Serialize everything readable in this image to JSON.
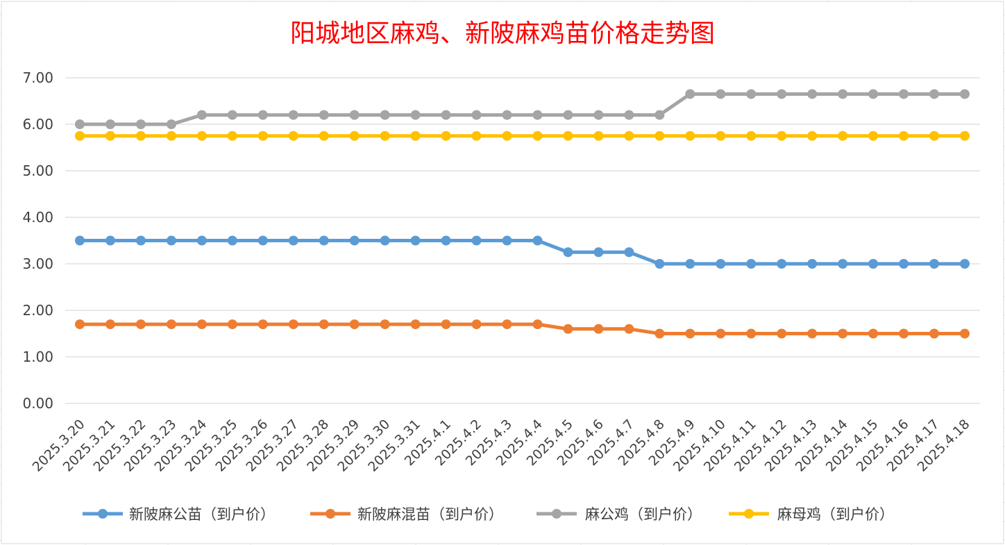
{
  "chart_data": {
    "type": "line",
    "title": "阳城地区麻鸡、新陂麻鸡苗价格走势图",
    "xlabel": "",
    "ylabel": "",
    "ylim": [
      0,
      7
    ],
    "y_ticks": [
      "0.00",
      "1.00",
      "2.00",
      "3.00",
      "4.00",
      "5.00",
      "6.00",
      "7.00"
    ],
    "grid": true,
    "legend_position": "bottom",
    "categories": [
      "2025.3.20",
      "2025.3.21",
      "2025.3.22",
      "2025.3.23",
      "2025.3.24",
      "2025.3.25",
      "2025.3.26",
      "2025.3.27",
      "2025.3.28",
      "2025.3.29",
      "2025.3.30",
      "2025.3.31",
      "2025.4.1",
      "2025.4.2",
      "2025.4.3",
      "2025.4.4",
      "2025.4.5",
      "2025.4.6",
      "2025.4.7",
      "2025.4.8",
      "2025.4.9",
      "2025.4.10",
      "2025.4.11",
      "2025.4.12",
      "2025.4.13",
      "2025.4.14",
      "2025.4.15",
      "2025.4.16",
      "2025.4.17",
      "2025.4.18"
    ],
    "series": [
      {
        "name": "新陂麻公苗（到户价）",
        "color": "#5b9bd5",
        "values": [
          3.5,
          3.5,
          3.5,
          3.5,
          3.5,
          3.5,
          3.5,
          3.5,
          3.5,
          3.5,
          3.5,
          3.5,
          3.5,
          3.5,
          3.5,
          3.5,
          3.25,
          3.25,
          3.25,
          3.0,
          3.0,
          3.0,
          3.0,
          3.0,
          3.0,
          3.0,
          3.0,
          3.0,
          3.0,
          3.0
        ]
      },
      {
        "name": "新陂麻混苗（到户价）",
        "color": "#ed7d31",
        "values": [
          1.7,
          1.7,
          1.7,
          1.7,
          1.7,
          1.7,
          1.7,
          1.7,
          1.7,
          1.7,
          1.7,
          1.7,
          1.7,
          1.7,
          1.7,
          1.7,
          1.6,
          1.6,
          1.6,
          1.5,
          1.5,
          1.5,
          1.5,
          1.5,
          1.5,
          1.5,
          1.5,
          1.5,
          1.5,
          1.5
        ]
      },
      {
        "name": "麻公鸡（到户价）",
        "color": "#a5a5a5",
        "values": [
          6.0,
          6.0,
          6.0,
          6.0,
          6.2,
          6.2,
          6.2,
          6.2,
          6.2,
          6.2,
          6.2,
          6.2,
          6.2,
          6.2,
          6.2,
          6.2,
          6.2,
          6.2,
          6.2,
          6.2,
          6.65,
          6.65,
          6.65,
          6.65,
          6.65,
          6.65,
          6.65,
          6.65,
          6.65,
          6.65
        ]
      },
      {
        "name": "麻母鸡（到户价）",
        "color": "#ffc000",
        "values": [
          5.75,
          5.75,
          5.75,
          5.75,
          5.75,
          5.75,
          5.75,
          5.75,
          5.75,
          5.75,
          5.75,
          5.75,
          5.75,
          5.75,
          5.75,
          5.75,
          5.75,
          5.75,
          5.75,
          5.75,
          5.75,
          5.75,
          5.75,
          5.75,
          5.75,
          5.75,
          5.75,
          5.75,
          5.75,
          5.75
        ]
      }
    ]
  }
}
